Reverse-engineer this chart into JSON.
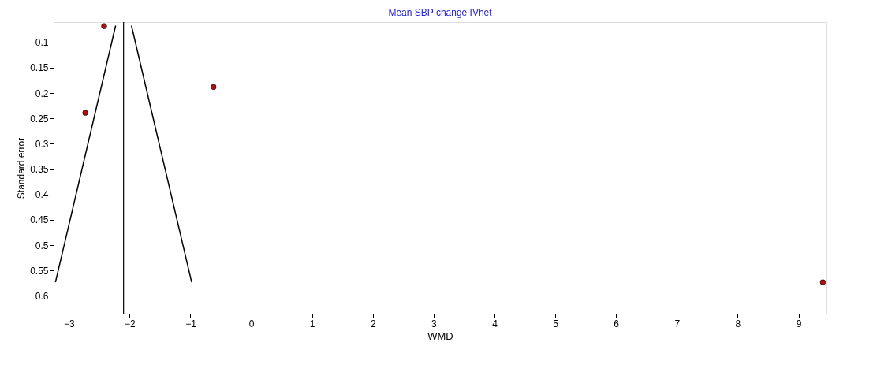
{
  "chart_data": {
    "type": "scatter",
    "title": "Mean SBP change IVhet",
    "xlabel": "WMD",
    "ylabel": "Standard error",
    "xlim": [
      -3.25,
      9.46
    ],
    "xticks": [
      -3,
      -2,
      -1,
      0,
      1,
      2,
      3,
      4,
      5,
      6,
      7,
      8,
      9
    ],
    "ylim": [
      0.635,
      0.06
    ],
    "yticks": [
      0.1,
      0.15,
      0.2,
      0.25,
      0.3,
      0.35,
      0.4,
      0.45,
      0.5,
      0.55,
      0.6
    ],
    "grid": false,
    "series": [
      {
        "color": "#b01010",
        "marker": "circle",
        "x": [
          -2.42,
          -2.73,
          -0.62,
          9.4
        ],
        "values": [
          0.068,
          0.239,
          0.188,
          0.573
        ]
      },
      {
        "type": "line",
        "color": "#000000",
        "line_style": "solid",
        "x": [
          -3.22,
          -2.23
        ],
        "values": [
          0.573,
          0.067
        ]
      },
      {
        "type": "line",
        "color": "#000000",
        "line_style": "solid",
        "x": [
          -1.97,
          -0.98
        ],
        "values": [
          0.067,
          0.573
        ]
      }
    ],
    "ref_lines": [
      {
        "axis": "x",
        "value": -2.1,
        "color": "#000000"
      }
    ]
  }
}
